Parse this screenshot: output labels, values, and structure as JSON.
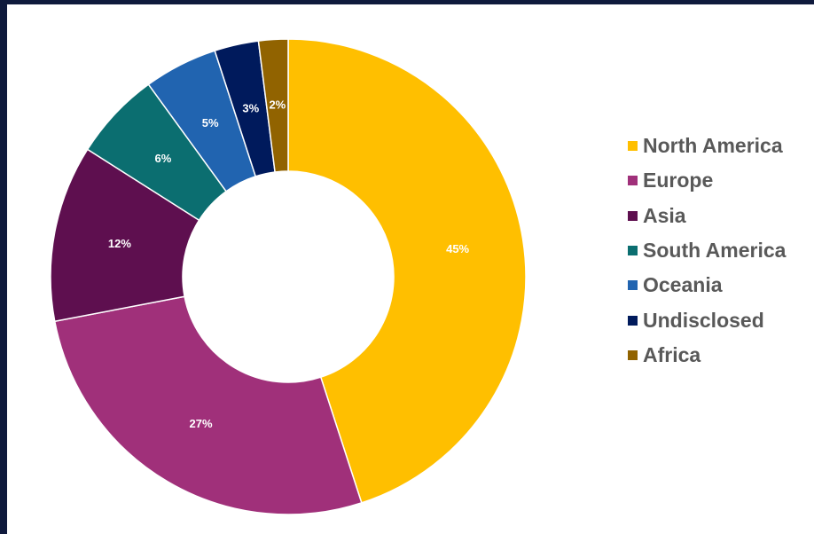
{
  "chart_data": {
    "type": "pie",
    "variant": "donut",
    "legend_position": "right",
    "categories": [
      "North America",
      "Europe",
      "Asia",
      "South America",
      "Oceania",
      "Undisclosed",
      "Africa"
    ],
    "values": [
      45,
      27,
      12,
      6,
      5,
      3,
      2
    ],
    "labels": [
      "45%",
      "27%",
      "12%",
      "6%",
      "5%",
      "3%",
      "2%"
    ],
    "colors": [
      "#ffbf00",
      "#a0307a",
      "#5e0f4f",
      "#0b6e70",
      "#2164b0",
      "#001a5c",
      "#916300"
    ]
  }
}
